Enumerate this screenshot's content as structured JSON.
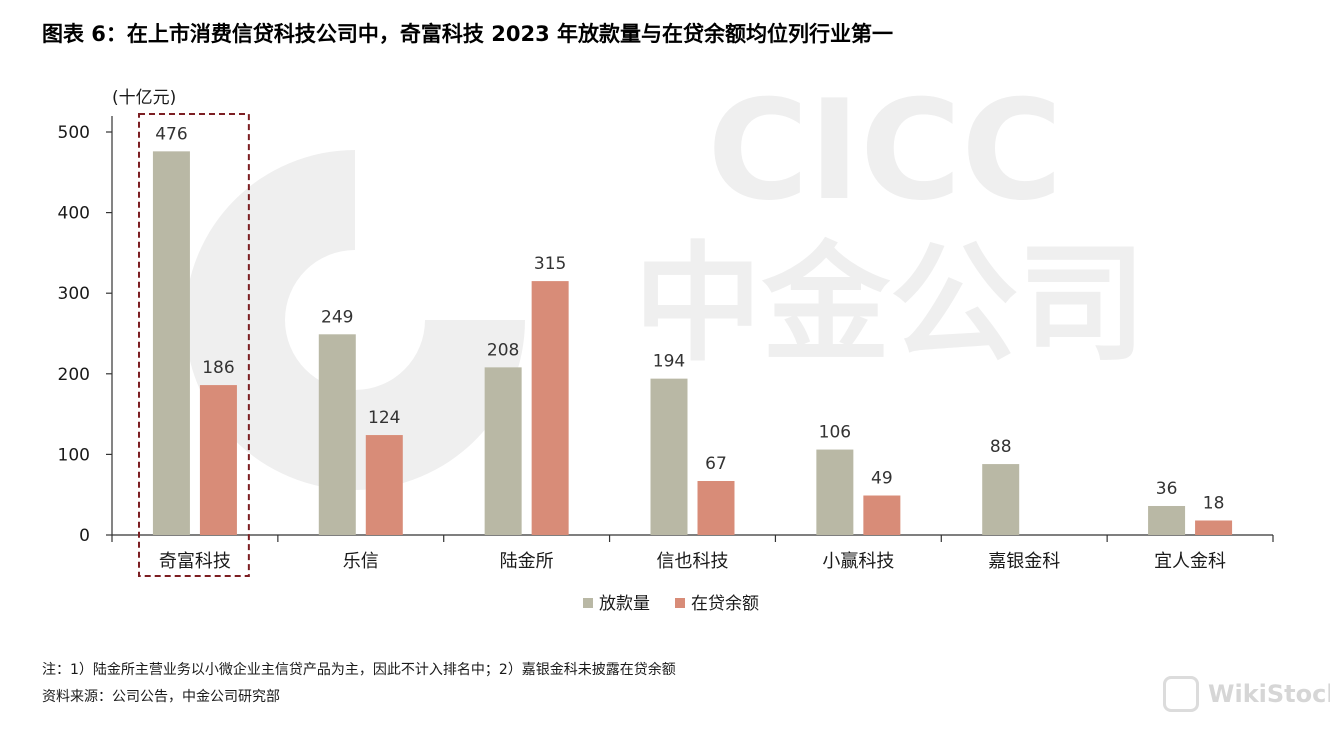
{
  "title": "图表 6：在上市消费信贷科技公司中，奇富科技 2023 年放款量与在贷余额均位列行业第一",
  "notes": {
    "note1": "注：1）陆金所主营业务以小微企业主信贷产品为主，因此不计入排名中；2）嘉银金科未披露在贷余额",
    "source": "资料来源：公司公告，中金公司研究部"
  },
  "watermark": {
    "brand_en": "CICC",
    "brand_cn": "中金公司",
    "site": "WikiStock"
  },
  "colors": {
    "loan_volume": "#b9b8a5",
    "outstanding_balance": "#d88c78",
    "highlight_box": "#7b1e22",
    "watermark": "#efefef"
  },
  "chart_data": {
    "type": "bar",
    "unit_label": "(十亿元)",
    "categories": [
      "奇富科技",
      "乐信",
      "陆金所",
      "信也科技",
      "小赢科技",
      "嘉银金科",
      "宜人金科"
    ],
    "series": [
      {
        "name": "放款量",
        "values": [
          476,
          249,
          208,
          194,
          106,
          88,
          36
        ]
      },
      {
        "name": "在贷余额",
        "values": [
          186,
          124,
          315,
          67,
          49,
          null,
          18
        ]
      }
    ],
    "ylim": [
      0,
      500
    ],
    "yticks": [
      0,
      100,
      200,
      300,
      400,
      500
    ],
    "highlight_category": "奇富科技",
    "legend_position": "bottom-center",
    "grid": false
  }
}
